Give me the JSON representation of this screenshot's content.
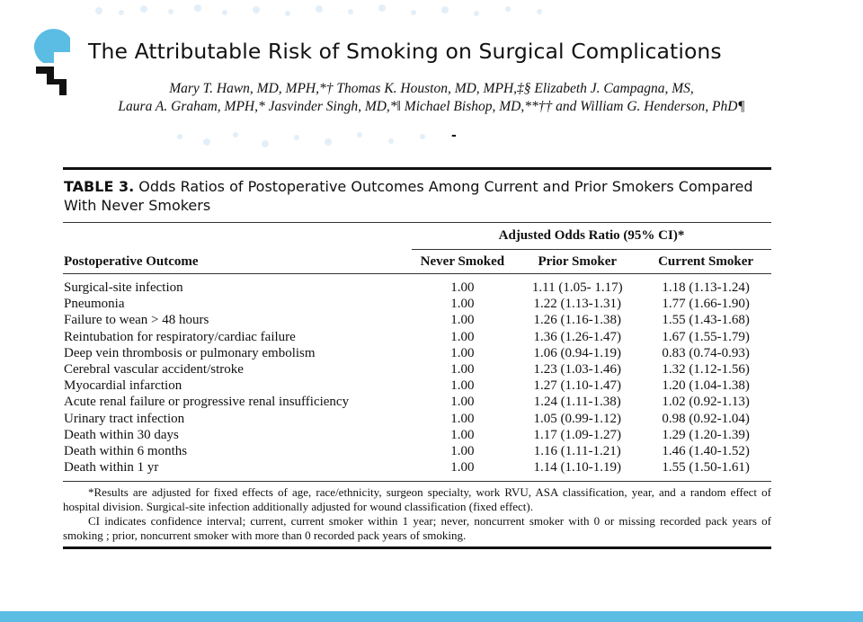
{
  "slide": {
    "title": "The Attributable Risk of Smoking on Surgical Complications",
    "authors_line1": "Mary T. Hawn, MD, MPH,*† Thomas K. Houston, MD, MPH,‡§ Elizabeth J. Campagna, MS,",
    "authors_line2": "Laura A. Graham, MPH,* Jasvinder Singh, MD,*‖ Michael Bishop, MD,**†† and William G. Henderson, PhD¶",
    "dash": "-"
  },
  "table": {
    "label": "TABLE 3.",
    "caption": "Odds Ratios of Postoperative Outcomes Among Current and Prior Smokers Compared With Never Smokers",
    "group_header": "Adjusted Odds Ratio (95% CI)*",
    "columns": [
      "Postoperative Outcome",
      "Never Smoked",
      "Prior Smoker",
      "Current Smoker"
    ],
    "rows": [
      [
        "Surgical-site infection",
        "1.00",
        "1.11 (1.05- 1.17)",
        "1.18 (1.13-1.24)"
      ],
      [
        "Pneumonia",
        "1.00",
        "1.22 (1.13-1.31)",
        "1.77 (1.66-1.90)"
      ],
      [
        "Failure to wean > 48 hours",
        "1.00",
        "1.26 (1.16-1.38)",
        "1.55 (1.43-1.68)"
      ],
      [
        "Reintubation for respiratory/cardiac failure",
        "1.00",
        "1.36 (1.26-1.47)",
        "1.67 (1.55-1.79)"
      ],
      [
        "Deep vein thrombosis or pulmonary embolism",
        "1.00",
        "1.06 (0.94-1.19)",
        "0.83 (0.74-0.93)"
      ],
      [
        "Cerebral vascular accident/stroke",
        "1.00",
        "1.23 (1.03-1.46)",
        "1.32 (1.12-1.56)"
      ],
      [
        "Myocardial infarction",
        "1.00",
        "1.27 (1.10-1.47)",
        "1.20 (1.04-1.38)"
      ],
      [
        "Acute renal failure or progressive renal insufficiency",
        "1.00",
        "1.24 (1.11-1.38)",
        "1.02 (0.92-1.13)"
      ],
      [
        "Urinary tract infection",
        "1.00",
        "1.05 (0.99-1.12)",
        "0.98 (0.92-1.04)"
      ],
      [
        "Death within 30 days",
        "1.00",
        "1.17 (1.09-1.27)",
        "1.29 (1.20-1.39)"
      ],
      [
        "Death within 6 months",
        "1.00",
        "1.16 (1.11-1.21)",
        "1.46 (1.40-1.52)"
      ],
      [
        "Death within 1 yr",
        "1.00",
        "1.14 (1.10-1.19)",
        "1.55 (1.50-1.61)"
      ]
    ],
    "footnote1": "*Results are adjusted for fixed effects of age, race/ethnicity, surgeon specialty, work RVU, ASA classification, year, and a random effect of hospital division. Surgical-site infection additionally adjusted for wound classification (fixed effect).",
    "footnote2": "CI indicates confidence interval; current, current smoker within 1 year; never, noncurrent smoker with 0 or missing recorded pack years of smoking ; prior, noncurrent smoker with more than 0 recorded pack years of smoking."
  },
  "colors": {
    "accent_blue": "#5bbce4",
    "dot_blue": "#dcebf6",
    "text": "#111111"
  }
}
